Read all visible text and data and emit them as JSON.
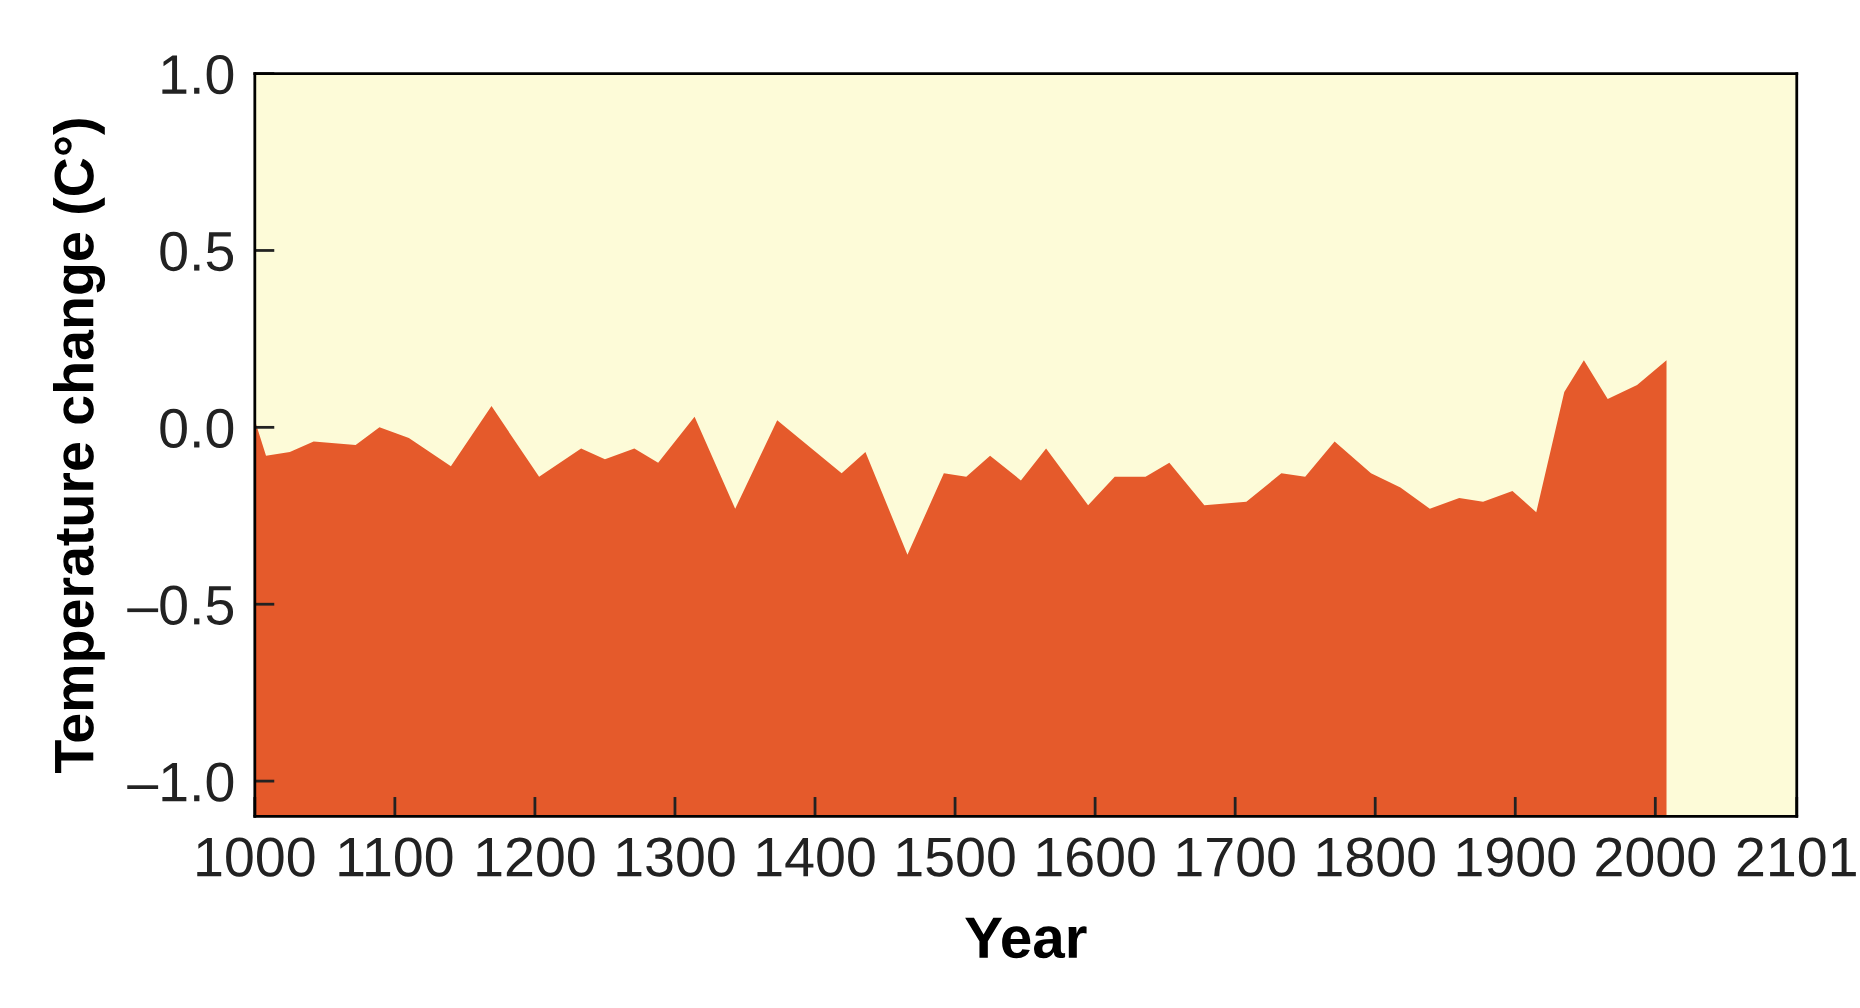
{
  "chart_data": {
    "type": "area",
    "xlabel": "Year",
    "ylabel": "Temperature change (C°)",
    "x": [
      1000,
      1008,
      1025,
      1042,
      1072,
      1089,
      1110,
      1140,
      1169,
      1203,
      1233,
      1250,
      1271,
      1288,
      1314,
      1343,
      1373,
      1419,
      1436,
      1466,
      1492,
      1508,
      1525,
      1547,
      1565,
      1595,
      1614,
      1636,
      1653,
      1678,
      1708,
      1733,
      1750,
      1771,
      1797,
      1818,
      1839,
      1860,
      1877,
      1898,
      1915,
      1935,
      1949,
      1966,
      1987,
      2008
    ],
    "series": [
      {
        "color": "#e55a2b",
        "values": [
          0.02,
          -0.08,
          -0.07,
          -0.04,
          -0.05,
          0.0,
          -0.03,
          -0.11,
          0.06,
          -0.14,
          -0.06,
          -0.09,
          -0.06,
          -0.1,
          0.03,
          -0.23,
          0.02,
          -0.13,
          -0.07,
          -0.36,
          -0.13,
          -0.14,
          -0.08,
          -0.15,
          -0.06,
          -0.22,
          -0.14,
          -0.14,
          -0.1,
          -0.22,
          -0.21,
          -0.13,
          -0.14,
          -0.04,
          -0.13,
          -0.17,
          -0.23,
          -0.2,
          -0.21,
          -0.18,
          -0.24,
          0.1,
          0.19,
          0.08,
          0.12,
          0.19
        ]
      }
    ],
    "xlim": [
      1000,
      2101
    ],
    "xticks": [
      1000,
      1100,
      1200,
      1300,
      1400,
      1500,
      1600,
      1700,
      1800,
      1900,
      2000,
      2101
    ],
    "ylim": [
      -1.1,
      1.0
    ],
    "yticks": [
      {
        "value": 1.0,
        "label": "1.0"
      },
      0.5,
      {
        "value": 0.0,
        "label": "0.0"
      },
      {
        "value": -0.5,
        "label": "–0.5"
      },
      {
        "value": -1.0,
        "label": "–1.0"
      }
    ],
    "grid": false,
    "legend": false
  }
}
